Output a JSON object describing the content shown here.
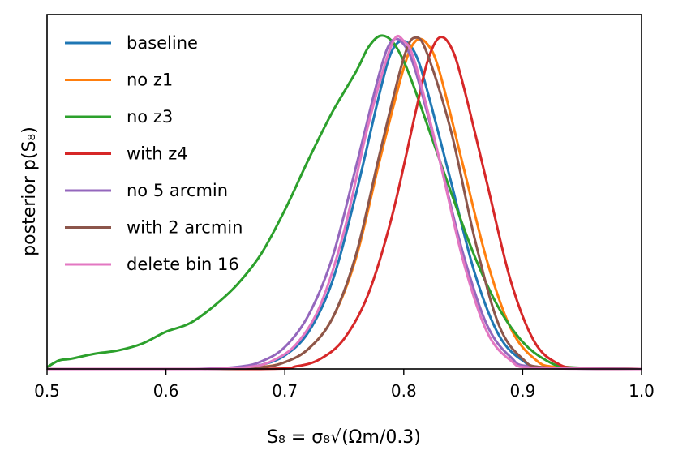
{
  "chart_data": {
    "type": "line",
    "title": "",
    "xlabel": "S₈ = σ₈√(Ωm/0.3)",
    "ylabel": "posterior p(S₈)",
    "xlim": [
      0.5,
      1.0
    ],
    "ylim": [
      0,
      1.0
    ],
    "xticks": [
      "0.5",
      "0.6",
      "0.7",
      "0.8",
      "0.9",
      "1.0"
    ],
    "xtick_values": [
      0.5,
      0.6,
      0.7,
      0.8,
      0.9,
      1.0
    ],
    "legend_position": "top-left",
    "series": [
      {
        "name": "baseline",
        "color": "#1f77b4",
        "x": [
          0.5,
          0.62,
          0.66,
          0.68,
          0.7,
          0.72,
          0.74,
          0.76,
          0.78,
          0.79,
          0.8,
          0.81,
          0.82,
          0.84,
          0.86,
          0.88,
          0.9,
          0.92,
          1.0
        ],
        "y": [
          0,
          0,
          0.003,
          0.012,
          0.04,
          0.11,
          0.26,
          0.52,
          0.82,
          0.94,
          0.97,
          0.93,
          0.82,
          0.55,
          0.28,
          0.1,
          0.025,
          0.004,
          0
        ]
      },
      {
        "name": "no z1",
        "color": "#ff7f0e",
        "x": [
          0.5,
          0.64,
          0.68,
          0.7,
          0.72,
          0.74,
          0.76,
          0.78,
          0.8,
          0.81,
          0.82,
          0.83,
          0.85,
          0.87,
          0.89,
          0.91,
          0.93,
          1.0
        ],
        "y": [
          0,
          0,
          0.006,
          0.02,
          0.06,
          0.15,
          0.33,
          0.62,
          0.89,
          0.97,
          0.96,
          0.88,
          0.6,
          0.32,
          0.12,
          0.03,
          0.005,
          0
        ]
      },
      {
        "name": "no z3",
        "color": "#2ca02c",
        "x": [
          0.5,
          0.51,
          0.52,
          0.54,
          0.56,
          0.58,
          0.6,
          0.62,
          0.64,
          0.66,
          0.68,
          0.7,
          0.72,
          0.74,
          0.76,
          0.77,
          0.78,
          0.79,
          0.8,
          0.81,
          0.82,
          0.84,
          0.86,
          0.88,
          0.9,
          0.92,
          0.94,
          1.0
        ],
        "y": [
          0.005,
          0.025,
          0.03,
          0.045,
          0.055,
          0.075,
          0.11,
          0.135,
          0.185,
          0.25,
          0.34,
          0.47,
          0.62,
          0.76,
          0.88,
          0.95,
          0.985,
          0.97,
          0.91,
          0.82,
          0.72,
          0.52,
          0.33,
          0.18,
          0.08,
          0.025,
          0.005,
          0
        ]
      },
      {
        "name": "with z4",
        "color": "#d62728",
        "x": [
          0.5,
          0.68,
          0.71,
          0.73,
          0.75,
          0.77,
          0.79,
          0.81,
          0.82,
          0.83,
          0.84,
          0.85,
          0.87,
          0.89,
          0.91,
          0.93,
          0.95,
          1.0
        ],
        "y": [
          0,
          0,
          0.008,
          0.03,
          0.09,
          0.22,
          0.45,
          0.76,
          0.91,
          0.98,
          0.95,
          0.84,
          0.55,
          0.26,
          0.08,
          0.015,
          0.002,
          0
        ]
      },
      {
        "name": "no 5 arcmin",
        "color": "#9467bd",
        "x": [
          0.5,
          0.62,
          0.66,
          0.68,
          0.7,
          0.72,
          0.74,
          0.76,
          0.78,
          0.79,
          0.8,
          0.81,
          0.83,
          0.85,
          0.87,
          0.89,
          0.91,
          1.0
        ],
        "y": [
          0,
          0,
          0.006,
          0.022,
          0.065,
          0.16,
          0.33,
          0.6,
          0.88,
          0.97,
          0.96,
          0.88,
          0.62,
          0.34,
          0.13,
          0.035,
          0.006,
          0
        ]
      },
      {
        "name": "with 2 arcmin",
        "color": "#8c564b",
        "x": [
          0.5,
          0.64,
          0.68,
          0.7,
          0.72,
          0.74,
          0.76,
          0.78,
          0.8,
          0.81,
          0.82,
          0.84,
          0.86,
          0.88,
          0.9,
          0.92,
          1.0
        ],
        "y": [
          0,
          0,
          0.005,
          0.02,
          0.06,
          0.15,
          0.34,
          0.64,
          0.92,
          0.98,
          0.93,
          0.7,
          0.38,
          0.13,
          0.03,
          0.004,
          0
        ]
      },
      {
        "name": "delete bin 16",
        "color": "#e377c2",
        "x": [
          0.5,
          0.63,
          0.67,
          0.69,
          0.71,
          0.73,
          0.75,
          0.77,
          0.79,
          0.8,
          0.81,
          0.83,
          0.85,
          0.87,
          0.89,
          0.91,
          1.0
        ],
        "y": [
          0,
          0,
          0.006,
          0.025,
          0.075,
          0.19,
          0.41,
          0.72,
          0.96,
          0.97,
          0.9,
          0.62,
          0.32,
          0.11,
          0.025,
          0.003,
          0
        ]
      }
    ]
  }
}
